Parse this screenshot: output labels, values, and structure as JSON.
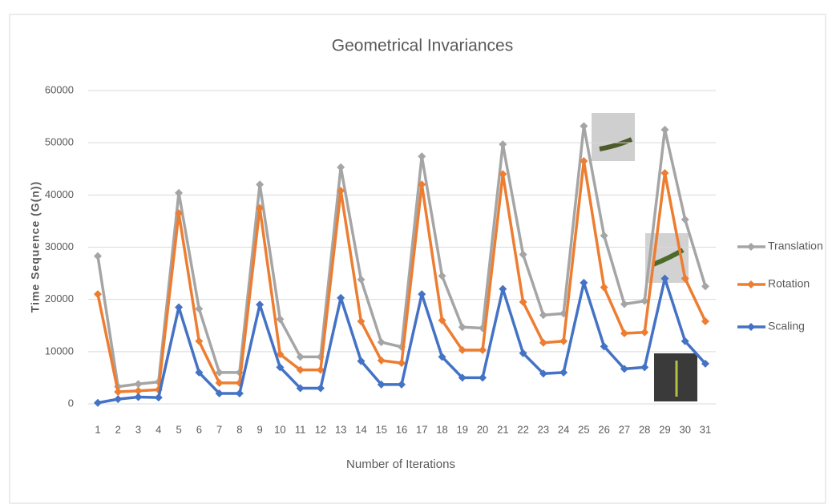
{
  "chart_data": {
    "type": "line",
    "title": "Geometrical Invariances",
    "x_label": "Number of Iterations",
    "y_label": "Time Sequence (G(n))",
    "categories": [
      1,
      2,
      3,
      4,
      5,
      6,
      7,
      8,
      9,
      10,
      11,
      12,
      13,
      14,
      15,
      16,
      17,
      18,
      19,
      20,
      21,
      22,
      23,
      24,
      25,
      26,
      27,
      28,
      29,
      30,
      31
    ],
    "ylim": [
      0,
      60000
    ],
    "yticks": [
      0,
      10000,
      20000,
      30000,
      40000,
      50000,
      60000
    ],
    "grid": true,
    "legend": "right",
    "series": [
      {
        "name": "Translation",
        "color": "#a5a5a5",
        "values": [
          28300,
          3300,
          3800,
          4200,
          40400,
          18200,
          6000,
          6000,
          42000,
          16200,
          9000,
          9000,
          45300,
          23800,
          11800,
          10900,
          47400,
          24500,
          14700,
          14500,
          49700,
          28600,
          17000,
          17300,
          53200,
          32200,
          19100,
          19700,
          52500,
          35300,
          22500
        ]
      },
      {
        "name": "Rotation",
        "color": "#ed7d31",
        "values": [
          21000,
          2300,
          2500,
          2700,
          36500,
          12000,
          4000,
          4000,
          37500,
          9500,
          6500,
          6500,
          40800,
          15800,
          8300,
          7800,
          42000,
          16000,
          10300,
          10300,
          44000,
          19500,
          11700,
          12000,
          46500,
          22300,
          13500,
          13700,
          44200,
          24000,
          15800
        ]
      },
      {
        "name": "Scaling",
        "color": "#4472c4",
        "values": [
          200,
          900,
          1300,
          1200,
          18500,
          6000,
          2000,
          2000,
          19000,
          7000,
          3000,
          3000,
          20300,
          8200,
          3700,
          3700,
          21000,
          9000,
          5000,
          5000,
          22000,
          9700,
          5800,
          6000,
          23200,
          11000,
          6700,
          7000,
          24000,
          12000,
          7700
        ]
      }
    ]
  }
}
